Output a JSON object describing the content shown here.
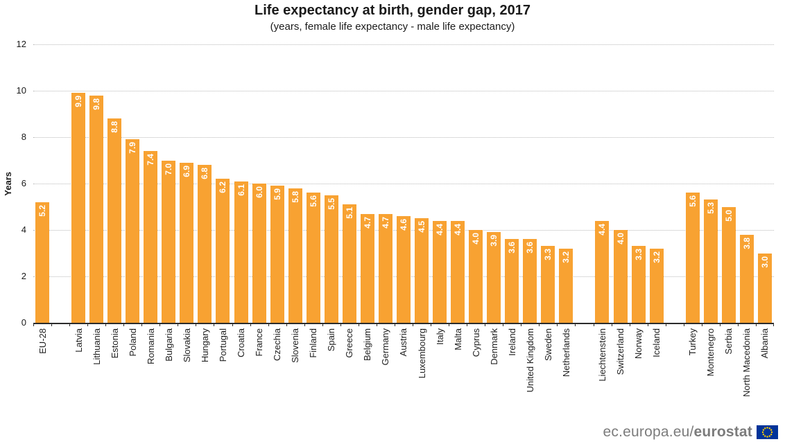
{
  "chart_data": {
    "type": "bar",
    "title": "Life expectancy at birth, gender gap, 2017",
    "subtitle": "(years, female life expectancy - male life expectancy)",
    "ylabel": "Years",
    "ylim": [
      0,
      12
    ],
    "yticks": [
      0,
      2,
      4,
      6,
      8,
      10,
      12
    ],
    "grid": "horizontal-dotted-gridlines",
    "legend": "none",
    "bar_color": "#F8A232",
    "value_label_color": "#FFFFFF",
    "groups": [
      {
        "bars": [
          {
            "label": "EU-28",
            "value": 5.2
          }
        ]
      },
      {
        "bars": [
          {
            "label": "Latvia",
            "value": 9.9
          },
          {
            "label": "Lithuania",
            "value": 9.8
          },
          {
            "label": "Estonia",
            "value": 8.8
          },
          {
            "label": "Poland",
            "value": 7.9
          },
          {
            "label": "Romania",
            "value": 7.4
          },
          {
            "label": "Bulgaria",
            "value": 7.0
          },
          {
            "label": "Slovakia",
            "value": 6.9
          },
          {
            "label": "Hungary",
            "value": 6.8
          },
          {
            "label": "Portugal",
            "value": 6.2
          },
          {
            "label": "Croatia",
            "value": 6.1
          },
          {
            "label": "France",
            "value": 6.0
          },
          {
            "label": "Czechia",
            "value": 5.9
          },
          {
            "label": "Slovenia",
            "value": 5.8
          },
          {
            "label": "Finland",
            "value": 5.6
          },
          {
            "label": "Spain",
            "value": 5.5
          },
          {
            "label": "Greece",
            "value": 5.1
          },
          {
            "label": "Belgium",
            "value": 4.7
          },
          {
            "label": "Germany",
            "value": 4.7
          },
          {
            "label": "Austria",
            "value": 4.6
          },
          {
            "label": "Luxembourg",
            "value": 4.5
          },
          {
            "label": "Italy",
            "value": 4.4
          },
          {
            "label": "Malta",
            "value": 4.4
          },
          {
            "label": "Cyprus",
            "value": 4.0
          },
          {
            "label": "Denmark",
            "value": 3.9
          },
          {
            "label": "Ireland",
            "value": 3.6
          },
          {
            "label": "United Kingdom",
            "value": 3.6
          },
          {
            "label": "Sweden",
            "value": 3.3
          },
          {
            "label": "Netherlands",
            "value": 3.2
          }
        ]
      },
      {
        "bars": [
          {
            "label": "Liechtenstein",
            "value": 4.4
          },
          {
            "label": "Switzerland",
            "value": 4.0
          },
          {
            "label": "Norway",
            "value": 3.3
          },
          {
            "label": "Iceland",
            "value": 3.2
          }
        ]
      },
      {
        "bars": [
          {
            "label": "Turkey",
            "value": 5.6
          },
          {
            "label": "Montenegro",
            "value": 5.3
          },
          {
            "label": "Serbia",
            "value": 5.0
          },
          {
            "label": "North Macedonia",
            "value": 3.8
          },
          {
            "label": "Albania",
            "value": 3.0
          }
        ]
      }
    ]
  },
  "footer": {
    "url_regular": "ec.europa.eu/",
    "url_bold": "eurostat",
    "flag_icon": "eu-flag-icon",
    "flag_blue": "#003399",
    "flag_star_yellow": "#FFCC00"
  }
}
